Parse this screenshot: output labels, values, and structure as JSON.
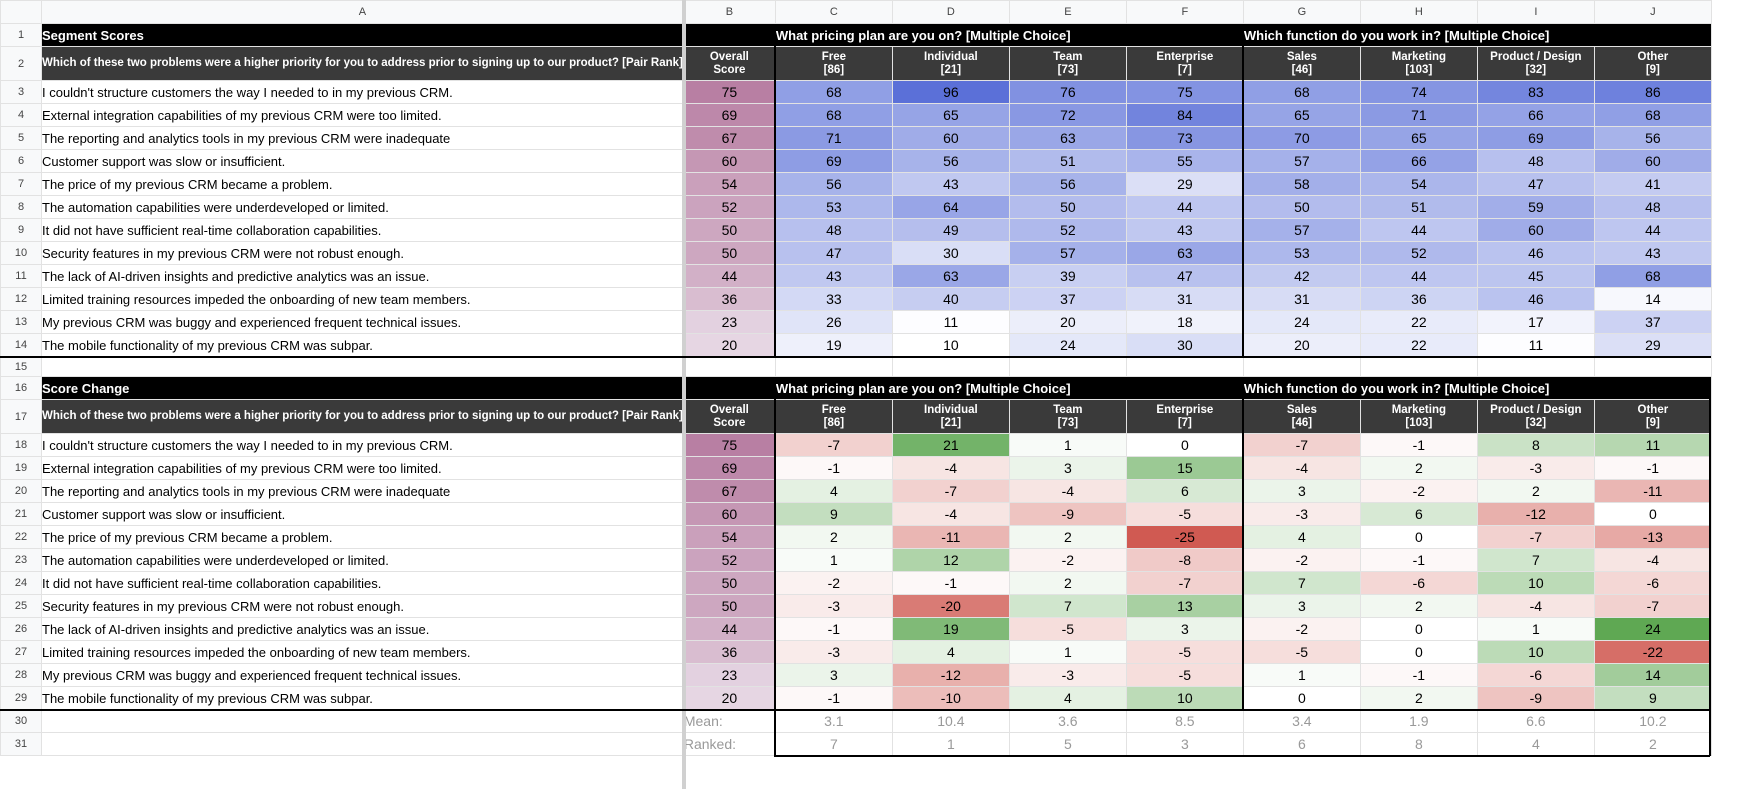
{
  "columns": [
    "A",
    "B",
    "C",
    "D",
    "E",
    "F",
    "G",
    "H",
    "I",
    "J"
  ],
  "sections": [
    {
      "title": "Segment Scores",
      "kind": "scores",
      "question": "Which of these two problems were a higher priority for you to address prior to signing up to our product? [Pair Rank]",
      "group1": "What pricing plan are you on? [Multiple Choice]",
      "group2": "Which function do you work in? [Multiple Choice]",
      "headers": [
        "Overall Score",
        "Free [86]",
        "Individual [21]",
        "Team [73]",
        "Enterprise [7]",
        "Sales [46]",
        "Marketing [103]",
        "Product / Design [32]",
        "Other [9]"
      ],
      "rows": [
        {
          "label": "I couldn't structure customers the way I needed to in my previous CRM.",
          "values": [
            75,
            68,
            96,
            76,
            75,
            68,
            74,
            83,
            86
          ]
        },
        {
          "label": "External integration capabilities of my previous CRM were too limited.",
          "values": [
            69,
            68,
            65,
            72,
            84,
            65,
            71,
            66,
            68
          ]
        },
        {
          "label": "The reporting and analytics tools in my previous CRM were inadequate",
          "values": [
            67,
            71,
            60,
            63,
            73,
            70,
            65,
            69,
            56
          ]
        },
        {
          "label": "Customer support was slow or insufficient.",
          "values": [
            60,
            69,
            56,
            51,
            55,
            57,
            66,
            48,
            60
          ]
        },
        {
          "label": "The price of my previous CRM became a problem.",
          "values": [
            54,
            56,
            43,
            56,
            29,
            58,
            54,
            47,
            41
          ]
        },
        {
          "label": "The automation capabilities were underdeveloped or limited.",
          "values": [
            52,
            53,
            64,
            50,
            44,
            50,
            51,
            59,
            48
          ]
        },
        {
          "label": "It did not have sufficient real-time collaboration capabilities.",
          "values": [
            50,
            48,
            49,
            52,
            43,
            57,
            44,
            60,
            44
          ]
        },
        {
          "label": "Security features in my previous CRM were not robust enough.",
          "values": [
            50,
            47,
            30,
            57,
            63,
            53,
            52,
            46,
            43
          ]
        },
        {
          "label": "The lack of AI-driven insights and predictive analytics was an issue.",
          "values": [
            44,
            43,
            63,
            39,
            47,
            42,
            44,
            45,
            68
          ]
        },
        {
          "label": "Limited training resources impeded the onboarding of new team members.",
          "values": [
            36,
            33,
            40,
            37,
            31,
            31,
            36,
            46,
            14
          ]
        },
        {
          "label": "My previous CRM was buggy and experienced frequent technical issues.",
          "values": [
            23,
            26,
            11,
            20,
            18,
            24,
            22,
            17,
            37
          ]
        },
        {
          "label": "The mobile functionality of my previous CRM was subpar.",
          "values": [
            20,
            19,
            10,
            24,
            30,
            20,
            22,
            11,
            29
          ]
        }
      ]
    },
    {
      "title": "Score Change",
      "kind": "change",
      "question": "Which of these two problems were a higher priority for you to address prior to signing up to our product? [Pair Rank]",
      "group1": "What pricing plan are you on? [Multiple Choice]",
      "group2": "Which function do you work in? [Multiple Choice]",
      "headers": [
        "Overall Score",
        "Free [86]",
        "Individual [21]",
        "Team [73]",
        "Enterprise [7]",
        "Sales [46]",
        "Marketing [103]",
        "Product / Design [32]",
        "Other [9]"
      ],
      "rows": [
        {
          "label": "I couldn't structure customers the way I needed to in my previous CRM.",
          "values": [
            75,
            -7,
            21,
            1,
            0,
            -7,
            -1,
            8,
            11
          ]
        },
        {
          "label": "External integration capabilities of my previous CRM were too limited.",
          "values": [
            69,
            -1,
            -4,
            3,
            15,
            -4,
            2,
            -3,
            -1
          ]
        },
        {
          "label": "The reporting and analytics tools in my previous CRM were inadequate",
          "values": [
            67,
            4,
            -7,
            -4,
            6,
            3,
            -2,
            2,
            -11
          ]
        },
        {
          "label": "Customer support was slow or insufficient.",
          "values": [
            60,
            9,
            -4,
            -9,
            -5,
            -3,
            6,
            -12,
            0
          ]
        },
        {
          "label": "The price of my previous CRM became a problem.",
          "values": [
            54,
            2,
            -11,
            2,
            -25,
            4,
            0,
            -7,
            -13
          ]
        },
        {
          "label": "The automation capabilities were underdeveloped or limited.",
          "values": [
            52,
            1,
            12,
            -2,
            -8,
            -2,
            -1,
            7,
            -4
          ]
        },
        {
          "label": "It did not have sufficient real-time collaboration capabilities.",
          "values": [
            50,
            -2,
            -1,
            2,
            -7,
            7,
            -6,
            10,
            -6
          ]
        },
        {
          "label": "Security features in my previous CRM were not robust enough.",
          "values": [
            50,
            -3,
            -20,
            7,
            13,
            3,
            2,
            -4,
            -7
          ]
        },
        {
          "label": "The lack of AI-driven insights and predictive analytics was an issue.",
          "values": [
            44,
            -1,
            19,
            -5,
            3,
            -2,
            0,
            1,
            24
          ]
        },
        {
          "label": "Limited training resources impeded the onboarding of new team members.",
          "values": [
            36,
            -3,
            4,
            1,
            -5,
            -5,
            0,
            10,
            -22
          ]
        },
        {
          "label": "My previous CRM was buggy and experienced frequent technical issues.",
          "values": [
            23,
            3,
            -12,
            -3,
            -5,
            1,
            -1,
            -6,
            14
          ]
        },
        {
          "label": "The mobile functionality of my previous CRM was subpar.",
          "values": [
            20,
            -1,
            -10,
            4,
            10,
            0,
            2,
            -9,
            9
          ]
        }
      ]
    }
  ],
  "mean": {
    "label": "Mean:",
    "values": [
      "3.1",
      "10.4",
      "3.6",
      "8.5",
      "3.4",
      "1.9",
      "6.6",
      "10.2"
    ]
  },
  "ranked": {
    "label": "Ranked:",
    "values": [
      "7",
      "1",
      "5",
      "3",
      "6",
      "8",
      "4",
      "2"
    ]
  },
  "colors": {
    "overall_high": "#b87fa3",
    "overall_low": "#e6d6e3",
    "score_high": "#5b70d8",
    "score_low": "#ffffff",
    "change_pos": "#5fa853",
    "change_neg": "#d05a52",
    "change_zero": "#ffffff",
    "header_black": "#000000",
    "header_dark": "#3a3a3a"
  }
}
